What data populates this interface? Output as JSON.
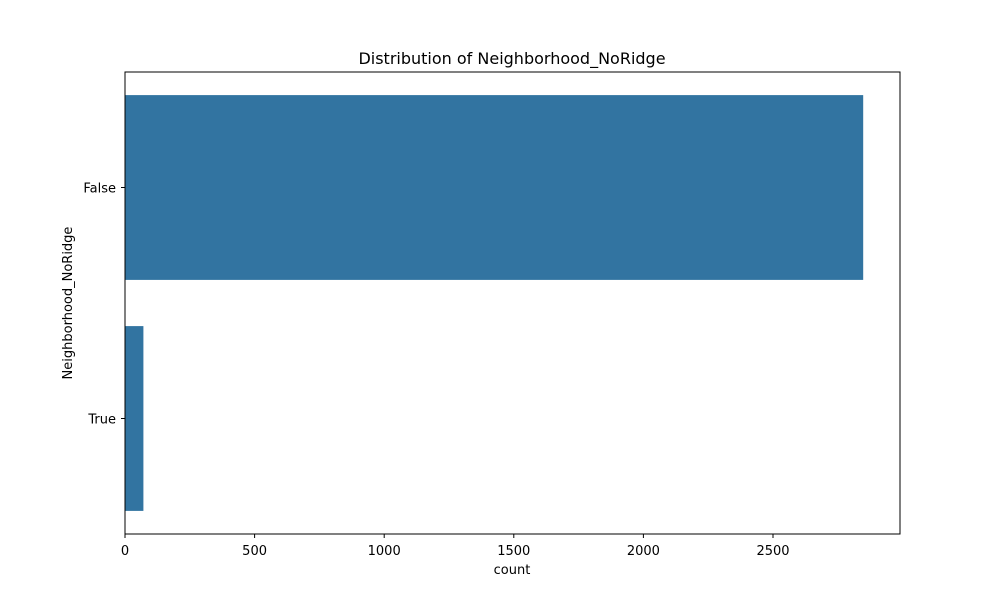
{
  "chart_data": {
    "type": "bar",
    "orientation": "horizontal",
    "title": "Distribution of Neighborhood_NoRidge",
    "xlabel": "count",
    "ylabel": "Neighborhood_NoRidge",
    "categories": [
      "False",
      "True"
    ],
    "values": [
      2848,
      71
    ],
    "xlim": [
      0,
      2990
    ],
    "xticks": [
      0,
      500,
      1000,
      1500,
      2000,
      2500
    ],
    "grid": false,
    "bar_color": "#3274a1"
  }
}
